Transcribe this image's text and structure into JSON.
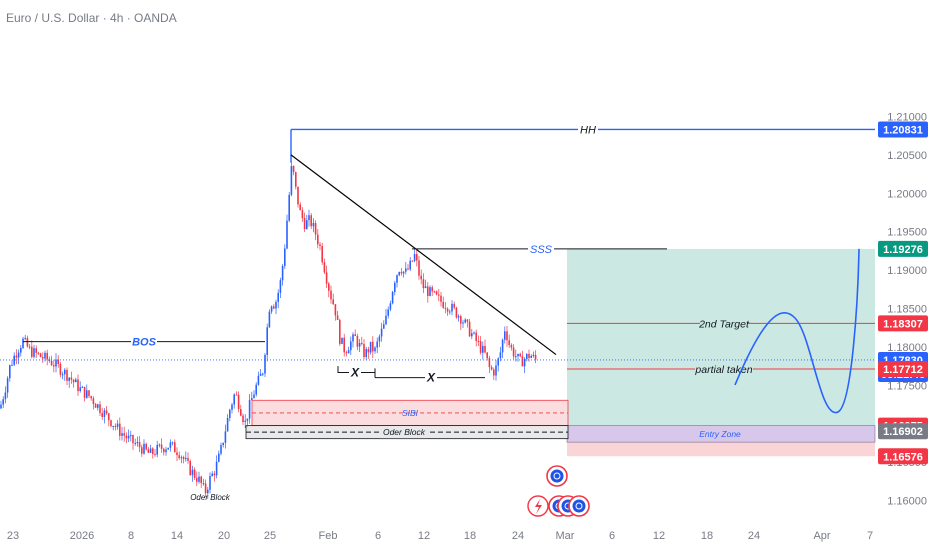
{
  "symbol_title": "Euro / U.S. Dollar · 4h · OANDA",
  "colors": {
    "up": "#2962ff",
    "down": "#f23645",
    "blue_line": "#2962ff",
    "red_line": "#f23645",
    "trendline": "#000000",
    "target_zone": "#cbe9e2",
    "stop_zone": "#f9d5d8",
    "entry_zone": "#d7c7ea",
    "sibi_zone": "#fbdde0",
    "ob_zone": "#e9e9ea",
    "tag_teal": "#089981",
    "tag_gray": "#787b86"
  },
  "chart_data": {
    "type": "candlestick",
    "x_tick_labels": [
      "23",
      "2026",
      "8",
      "14",
      "20",
      "25",
      "Feb",
      "6",
      "12",
      "18",
      "24",
      "Mar",
      "6",
      "12",
      "18",
      "24",
      "Apr",
      "7"
    ],
    "y_tick_labels": [
      "1.21000",
      "1.20500",
      "1.20000",
      "1.19500",
      "1.19000",
      "1.18500",
      "1.18000",
      "1.17500",
      "1.17000",
      "1.16500",
      "1.16000"
    ],
    "y_ticks": [
      1.21,
      1.205,
      1.2,
      1.195,
      1.19,
      1.185,
      1.18,
      1.175,
      1.17,
      1.165,
      1.16
    ],
    "ylim": [
      1.1565,
      1.2112
    ],
    "price_path": [
      [
        0,
        1.172
      ],
      [
        5,
        1.1745
      ],
      [
        10,
        1.1775
      ],
      [
        15,
        1.179
      ],
      [
        20,
        1.1802
      ],
      [
        23,
        1.1808
      ],
      [
        30,
        1.1795
      ],
      [
        40,
        1.1788
      ],
      [
        50,
        1.1782
      ],
      [
        60,
        1.1772
      ],
      [
        70,
        1.176
      ],
      [
        80,
        1.1745
      ],
      [
        90,
        1.1735
      ],
      [
        100,
        1.172
      ],
      [
        110,
        1.1705
      ],
      [
        120,
        1.169
      ],
      [
        130,
        1.1678
      ],
      [
        140,
        1.167
      ],
      [
        150,
        1.166
      ],
      [
        160,
        1.1668
      ],
      [
        170,
        1.1672
      ],
      [
        180,
        1.1662
      ],
      [
        190,
        1.164
      ],
      [
        200,
        1.1625
      ],
      [
        205,
        1.161
      ],
      [
        210,
        1.1628
      ],
      [
        215,
        1.164
      ],
      [
        220,
        1.166
      ],
      [
        225,
        1.169
      ],
      [
        230,
        1.172
      ],
      [
        235,
        1.174
      ],
      [
        240,
        1.1722
      ],
      [
        245,
        1.17
      ],
      [
        250,
        1.1725
      ],
      [
        255,
        1.1745
      ],
      [
        260,
        1.176
      ],
      [
        263,
        1.177
      ],
      [
        266,
        1.181
      ],
      [
        270,
        1.186
      ],
      [
        275,
        1.1855
      ],
      [
        280,
        1.188
      ],
      [
        284,
        1.192
      ],
      [
        288,
        1.198
      ],
      [
        292,
        1.204
      ],
      [
        295,
        1.201
      ],
      [
        300,
        1.1975
      ],
      [
        305,
        1.196
      ],
      [
        310,
        1.1965
      ],
      [
        315,
        1.195
      ],
      [
        320,
        1.193
      ],
      [
        325,
        1.19
      ],
      [
        330,
        1.187
      ],
      [
        335,
        1.185
      ],
      [
        340,
        1.181
      ],
      [
        345,
        1.1795
      ],
      [
        350,
        1.1805
      ],
      [
        355,
        1.1812
      ],
      [
        360,
        1.18
      ],
      [
        365,
        1.179
      ],
      [
        370,
        1.18
      ],
      [
        375,
        1.1795
      ],
      [
        380,
        1.1815
      ],
      [
        385,
        1.183
      ],
      [
        390,
        1.186
      ],
      [
        395,
        1.189
      ],
      [
        400,
        1.1905
      ],
      [
        405,
        1.1895
      ],
      [
        410,
        1.1905
      ],
      [
        415,
        1.192
      ],
      [
        418,
        1.19
      ],
      [
        422,
        1.188
      ],
      [
        430,
        1.187
      ],
      [
        440,
        1.186
      ],
      [
        450,
        1.1852
      ],
      [
        460,
        1.184
      ],
      [
        470,
        1.182
      ],
      [
        480,
        1.18
      ],
      [
        485,
        1.179
      ],
      [
        490,
        1.177
      ],
      [
        495,
        1.1768
      ],
      [
        500,
        1.179
      ],
      [
        505,
        1.1825
      ],
      [
        510,
        1.18
      ],
      [
        515,
        1.179
      ],
      [
        520,
        1.178
      ],
      [
        525,
        1.1785
      ],
      [
        530,
        1.179
      ],
      [
        535,
        1.1783
      ]
    ],
    "bos": {
      "label": "BOS",
      "price": 1.18068
    },
    "hh": {
      "label": "HH",
      "price": 1.20831
    },
    "sss": {
      "label": "SSS",
      "price": 1.19276
    },
    "x_marks": {
      "label": "X",
      "price": 1.17666
    },
    "second_target": {
      "label": "2nd Target",
      "price": 1.18307
    },
    "partial_taken": {
      "label": "partial taken",
      "price": 1.17712
    },
    "current_price": 1.1783,
    "countdown": "03:21:46",
    "sibi": {
      "label": "SIBI",
      "top": 1.17305,
      "bottom": 1.16975
    },
    "order_block": {
      "label": "Oder Block",
      "top": 1.16975,
      "bottom": 1.16805
    },
    "entry_zone": {
      "label": "Entry Zone",
      "top": 1.16975,
      "bottom": 1.1676
    },
    "target_zone": {
      "top": 1.19276,
      "bottom": 1.16975
    },
    "stop_zone": {
      "top": 1.1676,
      "bottom": 1.16576
    },
    "small_ob_label": "Oder Block",
    "price_tags": [
      {
        "value": "1.20831",
        "price": 1.20831,
        "color": "#2962ff"
      },
      {
        "value": "1.19276",
        "price": 1.19276,
        "color": "#089981"
      },
      {
        "value": "1.18307",
        "price": 1.18307,
        "color": "#f23645"
      },
      {
        "value": "1.17830",
        "price": 1.1783,
        "color": "#2962ff",
        "sub": "03:21:46"
      },
      {
        "value": "1.17712",
        "price": 1.17712,
        "color": "#f23645"
      },
      {
        "value": "1.16975",
        "price": 1.16975,
        "color": "#f23645"
      },
      {
        "value": "1.16902",
        "price": 1.16902,
        "color": "#787b86"
      },
      {
        "value": "1.16576",
        "price": 1.16576,
        "color": "#f23645"
      }
    ]
  }
}
